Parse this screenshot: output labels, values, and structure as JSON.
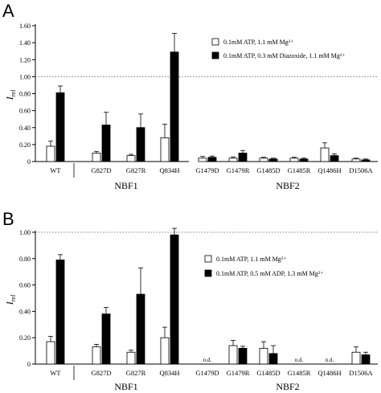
{
  "chart_data": [
    {
      "type": "bar",
      "panel": "A",
      "ylabel": "I",
      "ylabel_sub": "rel",
      "ylim": [
        0,
        1.6
      ],
      "yticks": [
        "0",
        "0.20",
        "0.40",
        "0.60",
        "0.80",
        "1.00",
        "1.20",
        "1.40",
        "1.60"
      ],
      "reference_line": 1.0,
      "categories": [
        "WT",
        "G827D",
        "G827R",
        "Q834H",
        "G1479D",
        "G1479R",
        "G1485D",
        "G1485R",
        "Q1486H",
        "D1506A"
      ],
      "groups": [
        "NBF1",
        "NBF2"
      ],
      "legend": {
        "position": "top-right"
      },
      "series": [
        {
          "name": "0.1mM ATP, 1.1 mM Mg²⁺",
          "fill": "#ffffff",
          "values": [
            0.18,
            0.1,
            0.07,
            0.28,
            0.04,
            0.04,
            0.04,
            0.04,
            0.16,
            0.03
          ],
          "errors": [
            0.06,
            0.02,
            0.015,
            0.16,
            0.02,
            0.015,
            0.01,
            0.01,
            0.06,
            0.01
          ],
          "labels": [
            "",
            "",
            "",
            "",
            "",
            "",
            "",
            "",
            "",
            ""
          ]
        },
        {
          "name": "0.1mM ATP, 0.3 mM Diazoxide, 1.1 mM Mg²⁺",
          "fill": "#000000",
          "values": [
            0.81,
            0.43,
            0.4,
            1.29,
            0.05,
            0.1,
            0.03,
            0.03,
            0.07,
            0.02
          ],
          "errors": [
            0.08,
            0.15,
            0.16,
            0.22,
            0.015,
            0.03,
            0.01,
            0.01,
            0.02,
            0.01
          ],
          "labels": [
            "",
            "",
            "",
            "",
            "",
            "",
            "",
            "",
            "",
            ""
          ]
        }
      ]
    },
    {
      "type": "bar",
      "panel": "B",
      "ylabel": "I",
      "ylabel_sub": "rel",
      "ylim": [
        0,
        1.0
      ],
      "yticks": [
        "0",
        "0.20",
        "0.40",
        "0.60",
        "0.80",
        "1.00"
      ],
      "reference_line": 1.0,
      "categories": [
        "WT",
        "G827D",
        "G827R",
        "Q834H",
        "G1479D",
        "G1479R",
        "G1485D",
        "G1485R",
        "Q1486H",
        "D1506A"
      ],
      "groups": [
        "NBF1",
        "NBF2"
      ],
      "legend": {
        "position": "right"
      },
      "series": [
        {
          "name": "0.1mM ATP, 1.1 mM Mg²⁺",
          "fill": "#ffffff",
          "values": [
            0.17,
            0.13,
            0.09,
            0.2,
            0,
            0.14,
            0.12,
            0,
            0,
            0.09
          ],
          "errors": [
            0.04,
            0.02,
            0.015,
            0.08,
            0,
            0.04,
            0.05,
            0,
            0,
            0.04
          ],
          "labels": [
            "",
            "",
            "",
            "",
            "n.d.",
            "",
            "",
            "n.d.",
            "n.d.",
            ""
          ]
        },
        {
          "name": "0.1mM ATP, 0.5 mM ADP, 1.3 mM Mg²⁺",
          "fill": "#000000",
          "values": [
            0.79,
            0.38,
            0.53,
            0.98,
            0,
            0.12,
            0.08,
            0,
            0,
            0.07
          ],
          "errors": [
            0.04,
            0.05,
            0.2,
            0.05,
            0,
            0.015,
            0.06,
            0,
            0,
            0.02
          ],
          "labels": [
            "",
            "",
            "",
            "",
            "",
            "",
            "",
            "",
            "",
            ""
          ]
        }
      ]
    }
  ]
}
